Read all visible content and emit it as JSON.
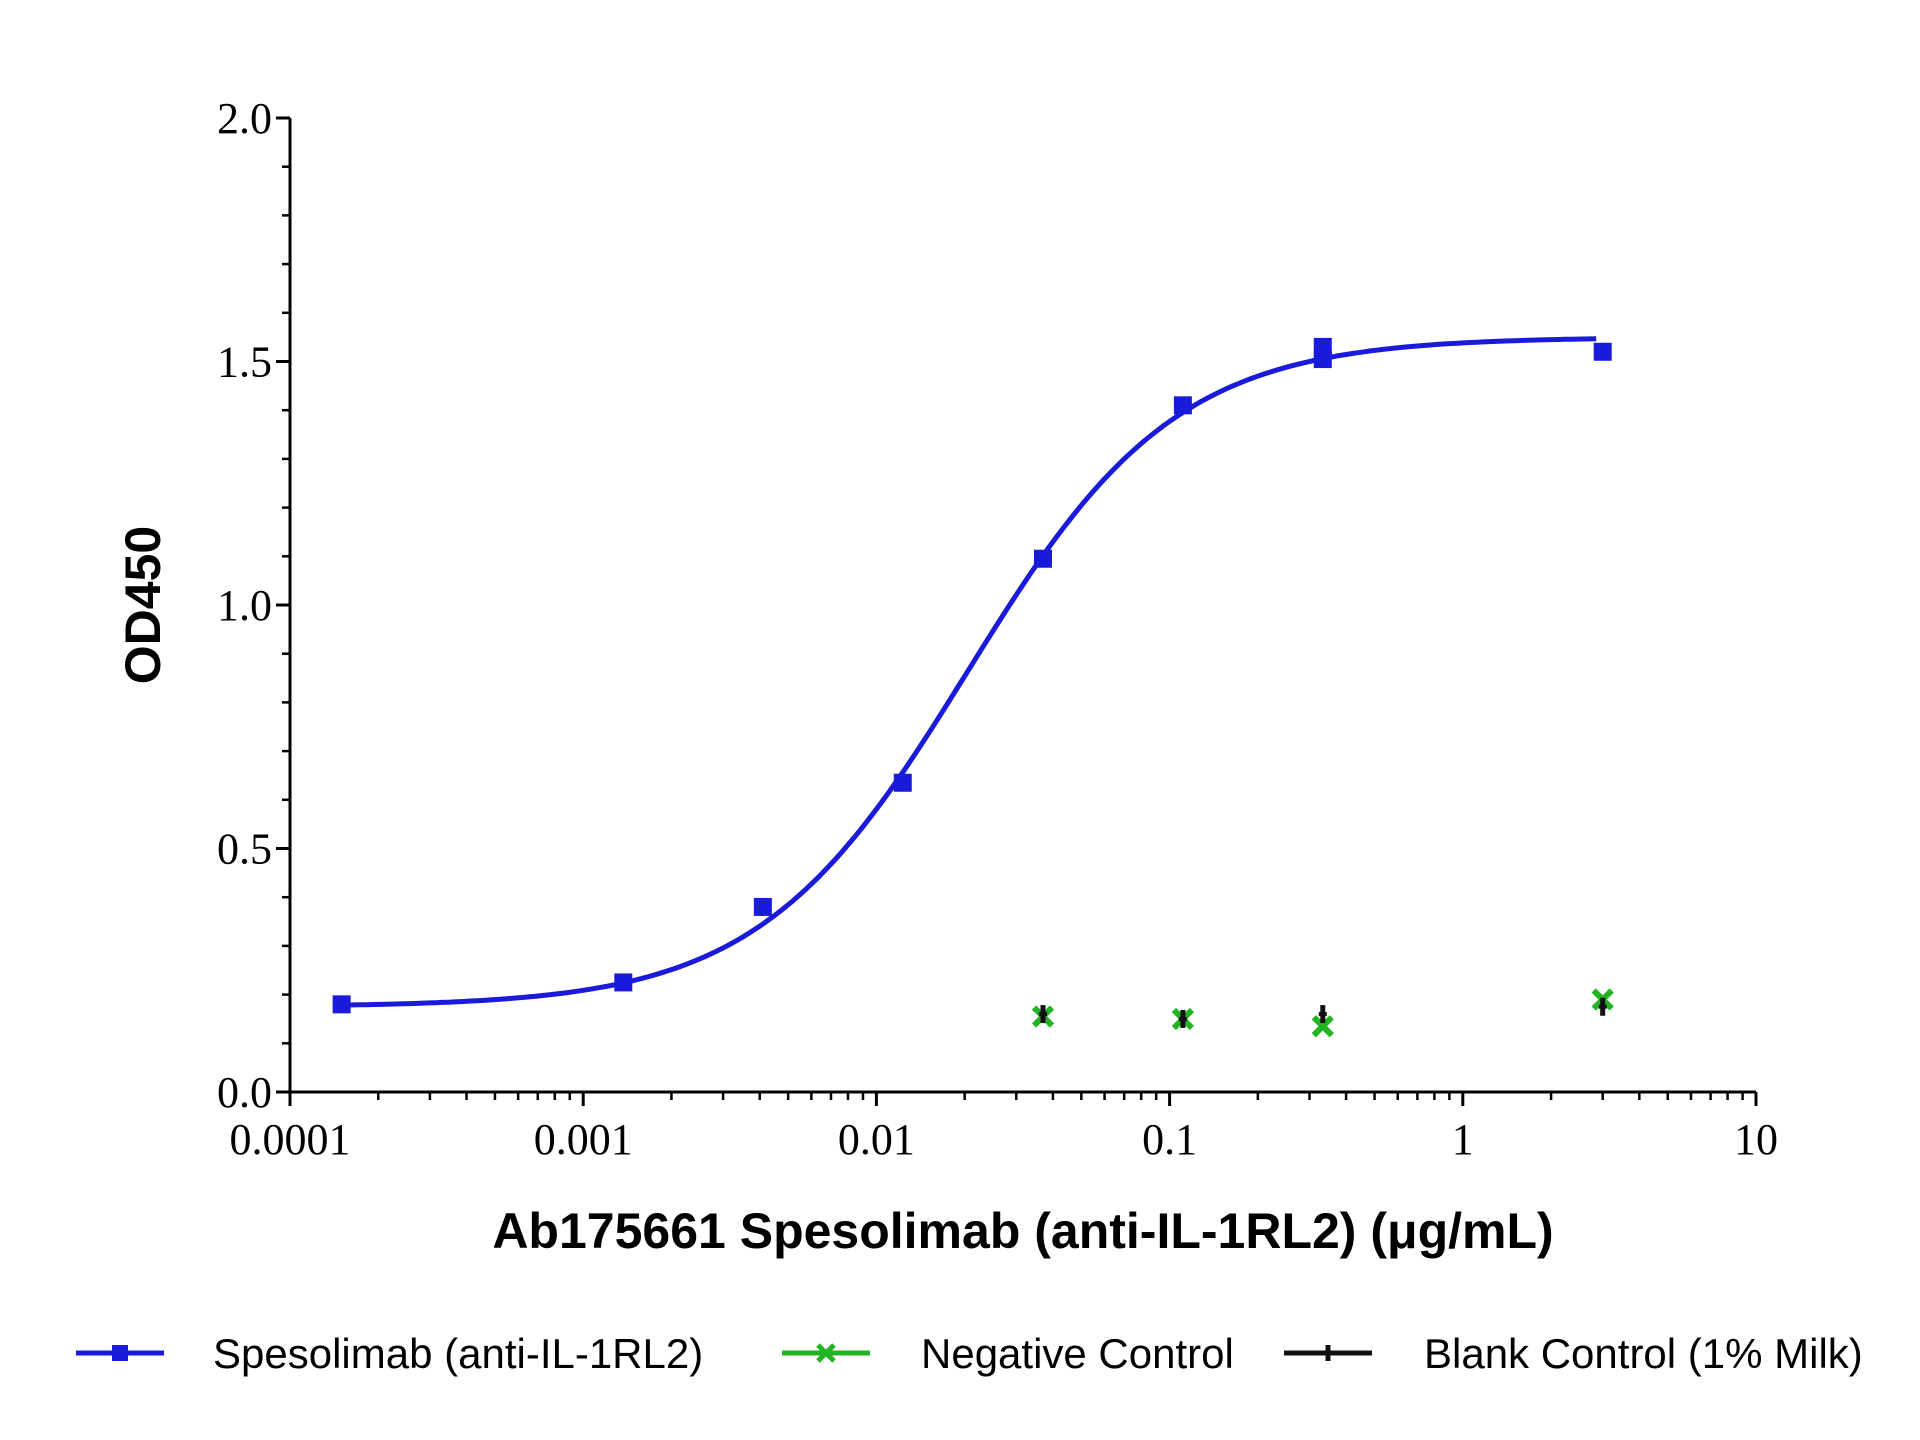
{
  "chart_data": {
    "type": "scatter",
    "title": "",
    "xlabel": "Ab175661 Spesolimab (anti-IL-1RL2) (μg/mL)",
    "ylabel": "OD450",
    "x_scale": "log",
    "xlim": [
      0.0001,
      10
    ],
    "ylim": [
      0,
      2.0
    ],
    "x_ticks": [
      0.0001,
      0.001,
      0.01,
      0.1,
      1,
      10
    ],
    "x_tick_labels": [
      "0.0001",
      "0.001",
      "0.01",
      "0.1",
      "1",
      "10"
    ],
    "y_ticks": [
      0,
      0.5,
      1.0,
      1.5,
      2.0
    ],
    "y_tick_labels": [
      "0.0",
      "0.5",
      "1.0",
      "1.5",
      "2.0"
    ],
    "grid": false,
    "legend_position": "bottom",
    "series": [
      {
        "name": "Spesolimab (anti-IL-1RL2)",
        "color": "#1a1adb",
        "marker": "square",
        "fit": "four-parameter-logistic",
        "points": [
          {
            "x": 0.00015,
            "y": 0.18
          },
          {
            "x": 0.00137,
            "y": 0.225
          },
          {
            "x": 0.0041,
            "y": 0.38
          },
          {
            "x": 0.0123,
            "y": 0.635
          },
          {
            "x": 0.037,
            "y": 1.095
          },
          {
            "x": 0.111,
            "y": 1.41
          },
          {
            "x": 0.333,
            "y": 1.505
          },
          {
            "x": 0.333,
            "y": 1.53
          },
          {
            "x": 3.0,
            "y": 1.52
          }
        ]
      },
      {
        "name": "Negative Control",
        "color": "#22b522",
        "marker": "x",
        "points": [
          {
            "x": 0.037,
            "y": 0.155
          },
          {
            "x": 0.111,
            "y": 0.15
          },
          {
            "x": 0.333,
            "y": 0.135
          },
          {
            "x": 3.0,
            "y": 0.19
          }
        ]
      },
      {
        "name": "Blank Control (1% Milk)",
        "color": "#111111",
        "marker": "tick",
        "points": [
          {
            "x": 0.037,
            "y": 0.16
          },
          {
            "x": 0.111,
            "y": 0.15
          },
          {
            "x": 0.333,
            "y": 0.16
          },
          {
            "x": 3.0,
            "y": 0.175
          }
        ]
      }
    ]
  }
}
